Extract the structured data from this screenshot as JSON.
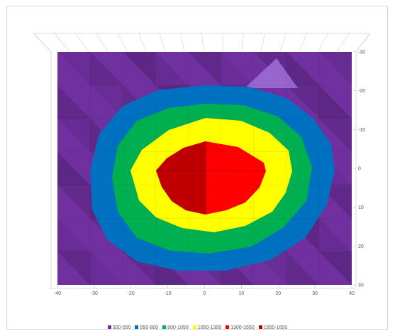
{
  "chart_data": {
    "type": "surface",
    "view": "top-down contour",
    "xlim": [
      -40,
      40
    ],
    "ylim": [
      -30,
      30
    ],
    "x_ticks": [
      "-40",
      "-30",
      "-20",
      "-10",
      "0",
      "10",
      "20",
      "30",
      "40"
    ],
    "y_ticks": [
      "-30",
      "-20",
      "-10",
      "0",
      "10",
      "20",
      "30"
    ],
    "bands": [
      {
        "name": "300-550",
        "range": [
          300,
          550
        ],
        "color": "#7030a0"
      },
      {
        "name": "550-800",
        "range": [
          550,
          800
        ],
        "color": "#0070c0"
      },
      {
        "name": "800-1050",
        "range": [
          800,
          1050
        ],
        "color": "#00b050"
      },
      {
        "name": "1050-1300",
        "range": [
          1050,
          1300
        ],
        "color": "#ffff00"
      },
      {
        "name": "1300-1550",
        "range": [
          1300,
          1550
        ],
        "color": "#ff0000"
      },
      {
        "name": "1550-1600",
        "range": [
          1550,
          1600
        ],
        "color": "#c00000"
      }
    ]
  }
}
